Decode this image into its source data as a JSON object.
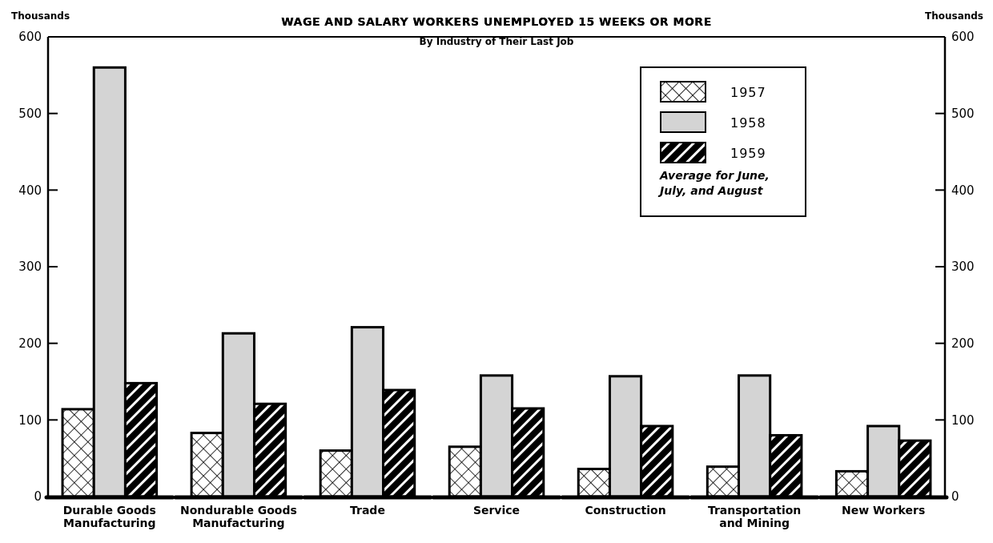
{
  "chart_data": {
    "type": "bar",
    "title": "WAGE AND SALARY WORKERS UNEMPLOYED 15 WEEKS OR MORE",
    "subtitle": "By Industry of Their Last Job",
    "ylabel": "Thousands",
    "y2label": "Thousands",
    "categories": [
      "Durable Goods Manufacturing",
      "Nondurable Goods Manufacturing",
      "Trade",
      "Service",
      "Construction",
      "Transportation and Mining",
      "New Workers"
    ],
    "series": [
      {
        "name": "1957",
        "color": "#000000",
        "values": [
          114,
          83,
          60,
          65,
          36,
          39,
          33
        ]
      },
      {
        "name": "1958",
        "color": "#d4d4d4",
        "values": [
          560,
          213,
          221,
          158,
          157,
          158,
          92
        ]
      },
      {
        "name": "1959",
        "color": "#000000",
        "values": [
          148,
          121,
          139,
          115,
          92,
          80,
          73
        ]
      }
    ],
    "ylim": [
      0,
      600
    ],
    "yticks": [
      0,
      100,
      200,
      300,
      400,
      500,
      600
    ],
    "y2lim": [
      0,
      600
    ],
    "y2ticks": [
      0,
      100,
      200,
      300,
      400,
      500,
      600
    ],
    "legend": "top right",
    "annotations": [
      "Average for June, July, and August"
    ]
  }
}
